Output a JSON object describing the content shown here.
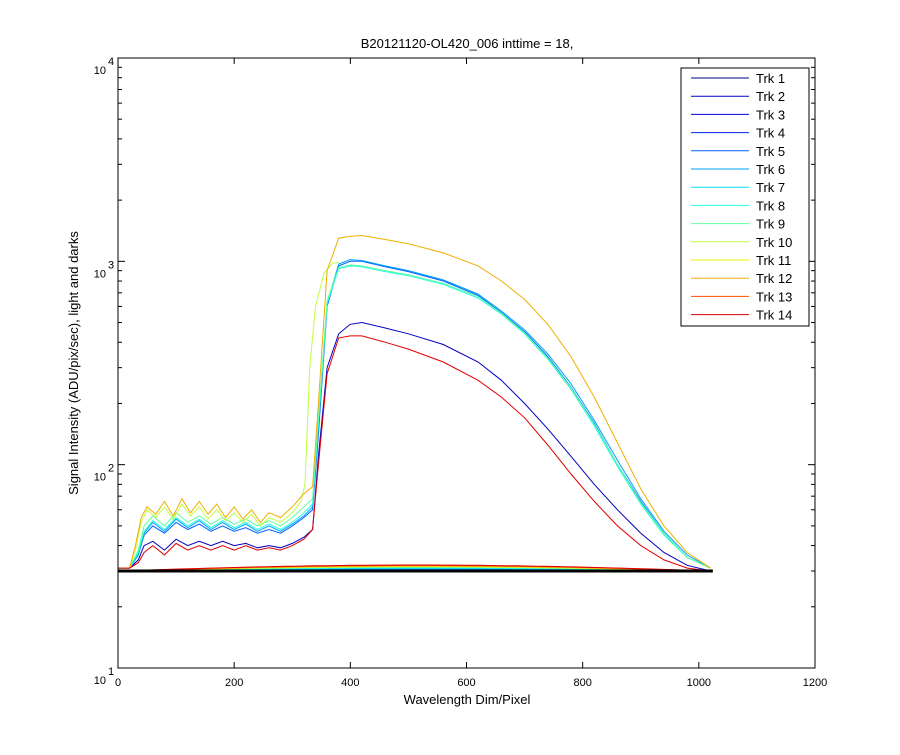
{
  "chart_data": {
    "type": "line",
    "title": "B20121120-OL420_006 inttime = 18,",
    "xlabel": "Wavelength Dim/Pixel",
    "ylabel": "Signal Intensity (ADU/pix/sec), light and darks",
    "xlim": [
      0,
      1200
    ],
    "ylim": [
      10,
      10000
    ],
    "yscale": "log",
    "grid": false,
    "legend_position": "top-right",
    "x_ticks": [
      0,
      200,
      400,
      600,
      800,
      1000,
      1200
    ],
    "y_ticks": [
      {
        "value": 10,
        "base": "10",
        "exp": "1"
      },
      {
        "value": 100,
        "base": "10",
        "exp": "2"
      },
      {
        "value": 1000,
        "base": "10",
        "exp": "3"
      },
      {
        "value": 10000,
        "base": "10",
        "exp": "4"
      }
    ],
    "dark_baseline": {
      "value": 30,
      "x_range": [
        0,
        1024
      ],
      "color": "#000000"
    },
    "series": [
      {
        "name": "Trk 1",
        "color": "#00008f",
        "values": []
      },
      {
        "name": "Trk 2",
        "color": "#0000bf",
        "values": [
          [
            0,
            31
          ],
          [
            20,
            31
          ],
          [
            35,
            34
          ],
          [
            45,
            40
          ],
          [
            60,
            42
          ],
          [
            80,
            38
          ],
          [
            100,
            43
          ],
          [
            120,
            40
          ],
          [
            140,
            42
          ],
          [
            160,
            40
          ],
          [
            180,
            42
          ],
          [
            200,
            40
          ],
          [
            220,
            41
          ],
          [
            240,
            39
          ],
          [
            260,
            40
          ],
          [
            280,
            39
          ],
          [
            300,
            41
          ],
          [
            320,
            44
          ],
          [
            335,
            48
          ],
          [
            345,
            110
          ],
          [
            360,
            300
          ],
          [
            380,
            440
          ],
          [
            400,
            490
          ],
          [
            420,
            500
          ],
          [
            460,
            470
          ],
          [
            500,
            440
          ],
          [
            560,
            390
          ],
          [
            620,
            320
          ],
          [
            660,
            260
          ],
          [
            700,
            200
          ],
          [
            740,
            150
          ],
          [
            780,
            110
          ],
          [
            820,
            80
          ],
          [
            860,
            60
          ],
          [
            900,
            46
          ],
          [
            940,
            37
          ],
          [
            980,
            32
          ],
          [
            1020,
            30
          ]
        ]
      },
      {
        "name": "Trk 3",
        "color": "#0000ef",
        "values": []
      },
      {
        "name": "Trk 4",
        "color": "#0020ff",
        "values": []
      },
      {
        "name": "Trk 5",
        "color": "#0060ff",
        "values": [
          [
            0,
            31
          ],
          [
            20,
            31
          ],
          [
            35,
            36
          ],
          [
            45,
            45
          ],
          [
            60,
            50
          ],
          [
            80,
            46
          ],
          [
            100,
            52
          ],
          [
            120,
            48
          ],
          [
            140,
            51
          ],
          [
            160,
            47
          ],
          [
            180,
            50
          ],
          [
            200,
            47
          ],
          [
            220,
            49
          ],
          [
            240,
            46
          ],
          [
            260,
            48
          ],
          [
            280,
            46
          ],
          [
            300,
            50
          ],
          [
            320,
            55
          ],
          [
            335,
            60
          ],
          [
            345,
            140
          ],
          [
            360,
            600
          ],
          [
            380,
            950
          ],
          [
            400,
            1000
          ],
          [
            420,
            1000
          ],
          [
            460,
            940
          ],
          [
            500,
            890
          ],
          [
            560,
            800
          ],
          [
            620,
            680
          ],
          [
            660,
            560
          ],
          [
            700,
            450
          ],
          [
            740,
            340
          ],
          [
            780,
            240
          ],
          [
            820,
            160
          ],
          [
            860,
            100
          ],
          [
            900,
            66
          ],
          [
            940,
            46
          ],
          [
            980,
            35
          ],
          [
            1020,
            31
          ]
        ]
      },
      {
        "name": "Trk 6",
        "color": "#00a0ff",
        "values": [
          [
            0,
            31
          ],
          [
            20,
            31
          ],
          [
            35,
            36
          ],
          [
            45,
            46
          ],
          [
            60,
            52
          ],
          [
            80,
            47
          ],
          [
            100,
            54
          ],
          [
            120,
            49
          ],
          [
            140,
            53
          ],
          [
            160,
            48
          ],
          [
            180,
            52
          ],
          [
            200,
            48
          ],
          [
            220,
            51
          ],
          [
            240,
            47
          ],
          [
            260,
            50
          ],
          [
            280,
            47
          ],
          [
            300,
            51
          ],
          [
            320,
            56
          ],
          [
            335,
            62
          ],
          [
            345,
            150
          ],
          [
            360,
            620
          ],
          [
            380,
            970
          ],
          [
            400,
            1020
          ],
          [
            420,
            1010
          ],
          [
            460,
            950
          ],
          [
            500,
            900
          ],
          [
            560,
            810
          ],
          [
            620,
            690
          ],
          [
            660,
            570
          ],
          [
            700,
            460
          ],
          [
            740,
            350
          ],
          [
            780,
            250
          ],
          [
            820,
            165
          ],
          [
            860,
            105
          ],
          [
            900,
            68
          ],
          [
            940,
            47
          ],
          [
            980,
            36
          ],
          [
            1020,
            31
          ]
        ]
      },
      {
        "name": "Trk 7",
        "color": "#00e0ff",
        "values": []
      },
      {
        "name": "Trk 8",
        "color": "#20ffdf",
        "values": [
          [
            0,
            31
          ],
          [
            20,
            31
          ],
          [
            35,
            37
          ],
          [
            45,
            47
          ],
          [
            60,
            53
          ],
          [
            80,
            48
          ],
          [
            100,
            55
          ],
          [
            120,
            50
          ],
          [
            140,
            54
          ],
          [
            160,
            49
          ],
          [
            180,
            53
          ],
          [
            200,
            49
          ],
          [
            220,
            52
          ],
          [
            240,
            48
          ],
          [
            260,
            51
          ],
          [
            280,
            48
          ],
          [
            300,
            52
          ],
          [
            320,
            58
          ],
          [
            335,
            64
          ],
          [
            345,
            160
          ],
          [
            360,
            620
          ],
          [
            380,
            920
          ],
          [
            400,
            950
          ],
          [
            420,
            940
          ],
          [
            460,
            890
          ],
          [
            500,
            850
          ],
          [
            560,
            770
          ],
          [
            620,
            660
          ],
          [
            660,
            550
          ],
          [
            700,
            440
          ],
          [
            740,
            330
          ],
          [
            780,
            235
          ],
          [
            820,
            155
          ],
          [
            860,
            98
          ],
          [
            900,
            64
          ],
          [
            940,
            45
          ],
          [
            980,
            35
          ],
          [
            1020,
            31
          ]
        ]
      },
      {
        "name": "Trk 9",
        "color": "#60ff9f",
        "values": [
          [
            0,
            31
          ],
          [
            20,
            31
          ],
          [
            35,
            38
          ],
          [
            45,
            50
          ],
          [
            60,
            56
          ],
          [
            80,
            50
          ],
          [
            100,
            58
          ],
          [
            120,
            52
          ],
          [
            140,
            56
          ],
          [
            160,
            51
          ],
          [
            180,
            55
          ],
          [
            200,
            51
          ],
          [
            220,
            54
          ],
          [
            240,
            50
          ],
          [
            260,
            53
          ],
          [
            280,
            50
          ],
          [
            300,
            55
          ],
          [
            320,
            62
          ],
          [
            335,
            68
          ],
          [
            345,
            170
          ],
          [
            360,
            640
          ],
          [
            380,
            930
          ],
          [
            400,
            960
          ],
          [
            420,
            950
          ],
          [
            460,
            900
          ],
          [
            500,
            860
          ],
          [
            560,
            780
          ],
          [
            620,
            670
          ],
          [
            660,
            555
          ],
          [
            700,
            445
          ],
          [
            740,
            335
          ],
          [
            780,
            238
          ],
          [
            820,
            158
          ],
          [
            860,
            100
          ],
          [
            900,
            65
          ],
          [
            940,
            46
          ],
          [
            980,
            35
          ],
          [
            1020,
            31
          ]
        ]
      },
      {
        "name": "Trk 10",
        "color": "#c0ff3f",
        "values": [
          [
            0,
            31
          ],
          [
            20,
            31
          ],
          [
            30,
            38
          ],
          [
            40,
            52
          ],
          [
            50,
            60
          ],
          [
            65,
            55
          ],
          [
            80,
            62
          ],
          [
            95,
            54
          ],
          [
            110,
            64
          ],
          [
            125,
            56
          ],
          [
            140,
            62
          ],
          [
            155,
            54
          ],
          [
            170,
            60
          ],
          [
            185,
            53
          ],
          [
            200,
            58
          ],
          [
            215,
            52
          ],
          [
            230,
            57
          ],
          [
            245,
            50
          ],
          [
            260,
            55
          ],
          [
            280,
            52
          ],
          [
            300,
            58
          ],
          [
            315,
            66
          ],
          [
            322,
            80
          ],
          [
            330,
            300
          ],
          [
            340,
            600
          ],
          [
            355,
            880
          ],
          [
            370,
            980
          ],
          [
            380,
            990
          ]
        ]
      },
      {
        "name": "Trk 11",
        "color": "#efef00",
        "values": []
      },
      {
        "name": "Trk 12",
        "color": "#efaf00",
        "values": [
          [
            0,
            31
          ],
          [
            20,
            31
          ],
          [
            30,
            40
          ],
          [
            40,
            55
          ],
          [
            50,
            62
          ],
          [
            65,
            57
          ],
          [
            80,
            66
          ],
          [
            95,
            56
          ],
          [
            110,
            68
          ],
          [
            125,
            58
          ],
          [
            140,
            66
          ],
          [
            155,
            57
          ],
          [
            170,
            64
          ],
          [
            185,
            55
          ],
          [
            200,
            62
          ],
          [
            215,
            54
          ],
          [
            230,
            60
          ],
          [
            245,
            52
          ],
          [
            260,
            58
          ],
          [
            280,
            55
          ],
          [
            300,
            62
          ],
          [
            320,
            72
          ],
          [
            335,
            78
          ],
          [
            345,
            200
          ],
          [
            360,
            900
          ],
          [
            380,
            1300
          ],
          [
            400,
            1330
          ],
          [
            420,
            1340
          ],
          [
            460,
            1280
          ],
          [
            500,
            1220
          ],
          [
            560,
            1100
          ],
          [
            620,
            950
          ],
          [
            660,
            800
          ],
          [
            700,
            650
          ],
          [
            740,
            490
          ],
          [
            780,
            340
          ],
          [
            820,
            215
          ],
          [
            860,
            128
          ],
          [
            900,
            76
          ],
          [
            940,
            50
          ],
          [
            980,
            37
          ],
          [
            1020,
            31
          ]
        ]
      },
      {
        "name": "Trk 13",
        "color": "#ff5000",
        "values": []
      },
      {
        "name": "Trk 14",
        "color": "#df0000",
        "values": [
          [
            0,
            31
          ],
          [
            20,
            31
          ],
          [
            35,
            33
          ],
          [
            45,
            37
          ],
          [
            60,
            40
          ],
          [
            80,
            36
          ],
          [
            100,
            41
          ],
          [
            120,
            38
          ],
          [
            140,
            40
          ],
          [
            160,
            38
          ],
          [
            180,
            40
          ],
          [
            200,
            38
          ],
          [
            220,
            40
          ],
          [
            240,
            38
          ],
          [
            260,
            39
          ],
          [
            280,
            38
          ],
          [
            300,
            40
          ],
          [
            320,
            43
          ],
          [
            335,
            48
          ],
          [
            345,
            100
          ],
          [
            360,
            280
          ],
          [
            380,
            420
          ],
          [
            400,
            430
          ],
          [
            420,
            430
          ],
          [
            460,
            400
          ],
          [
            500,
            370
          ],
          [
            560,
            320
          ],
          [
            620,
            260
          ],
          [
            660,
            215
          ],
          [
            700,
            170
          ],
          [
            740,
            125
          ],
          [
            780,
            90
          ],
          [
            820,
            66
          ],
          [
            860,
            50
          ],
          [
            900,
            40
          ],
          [
            940,
            34
          ],
          [
            980,
            31
          ],
          [
            1020,
            30
          ]
        ]
      }
    ]
  }
}
